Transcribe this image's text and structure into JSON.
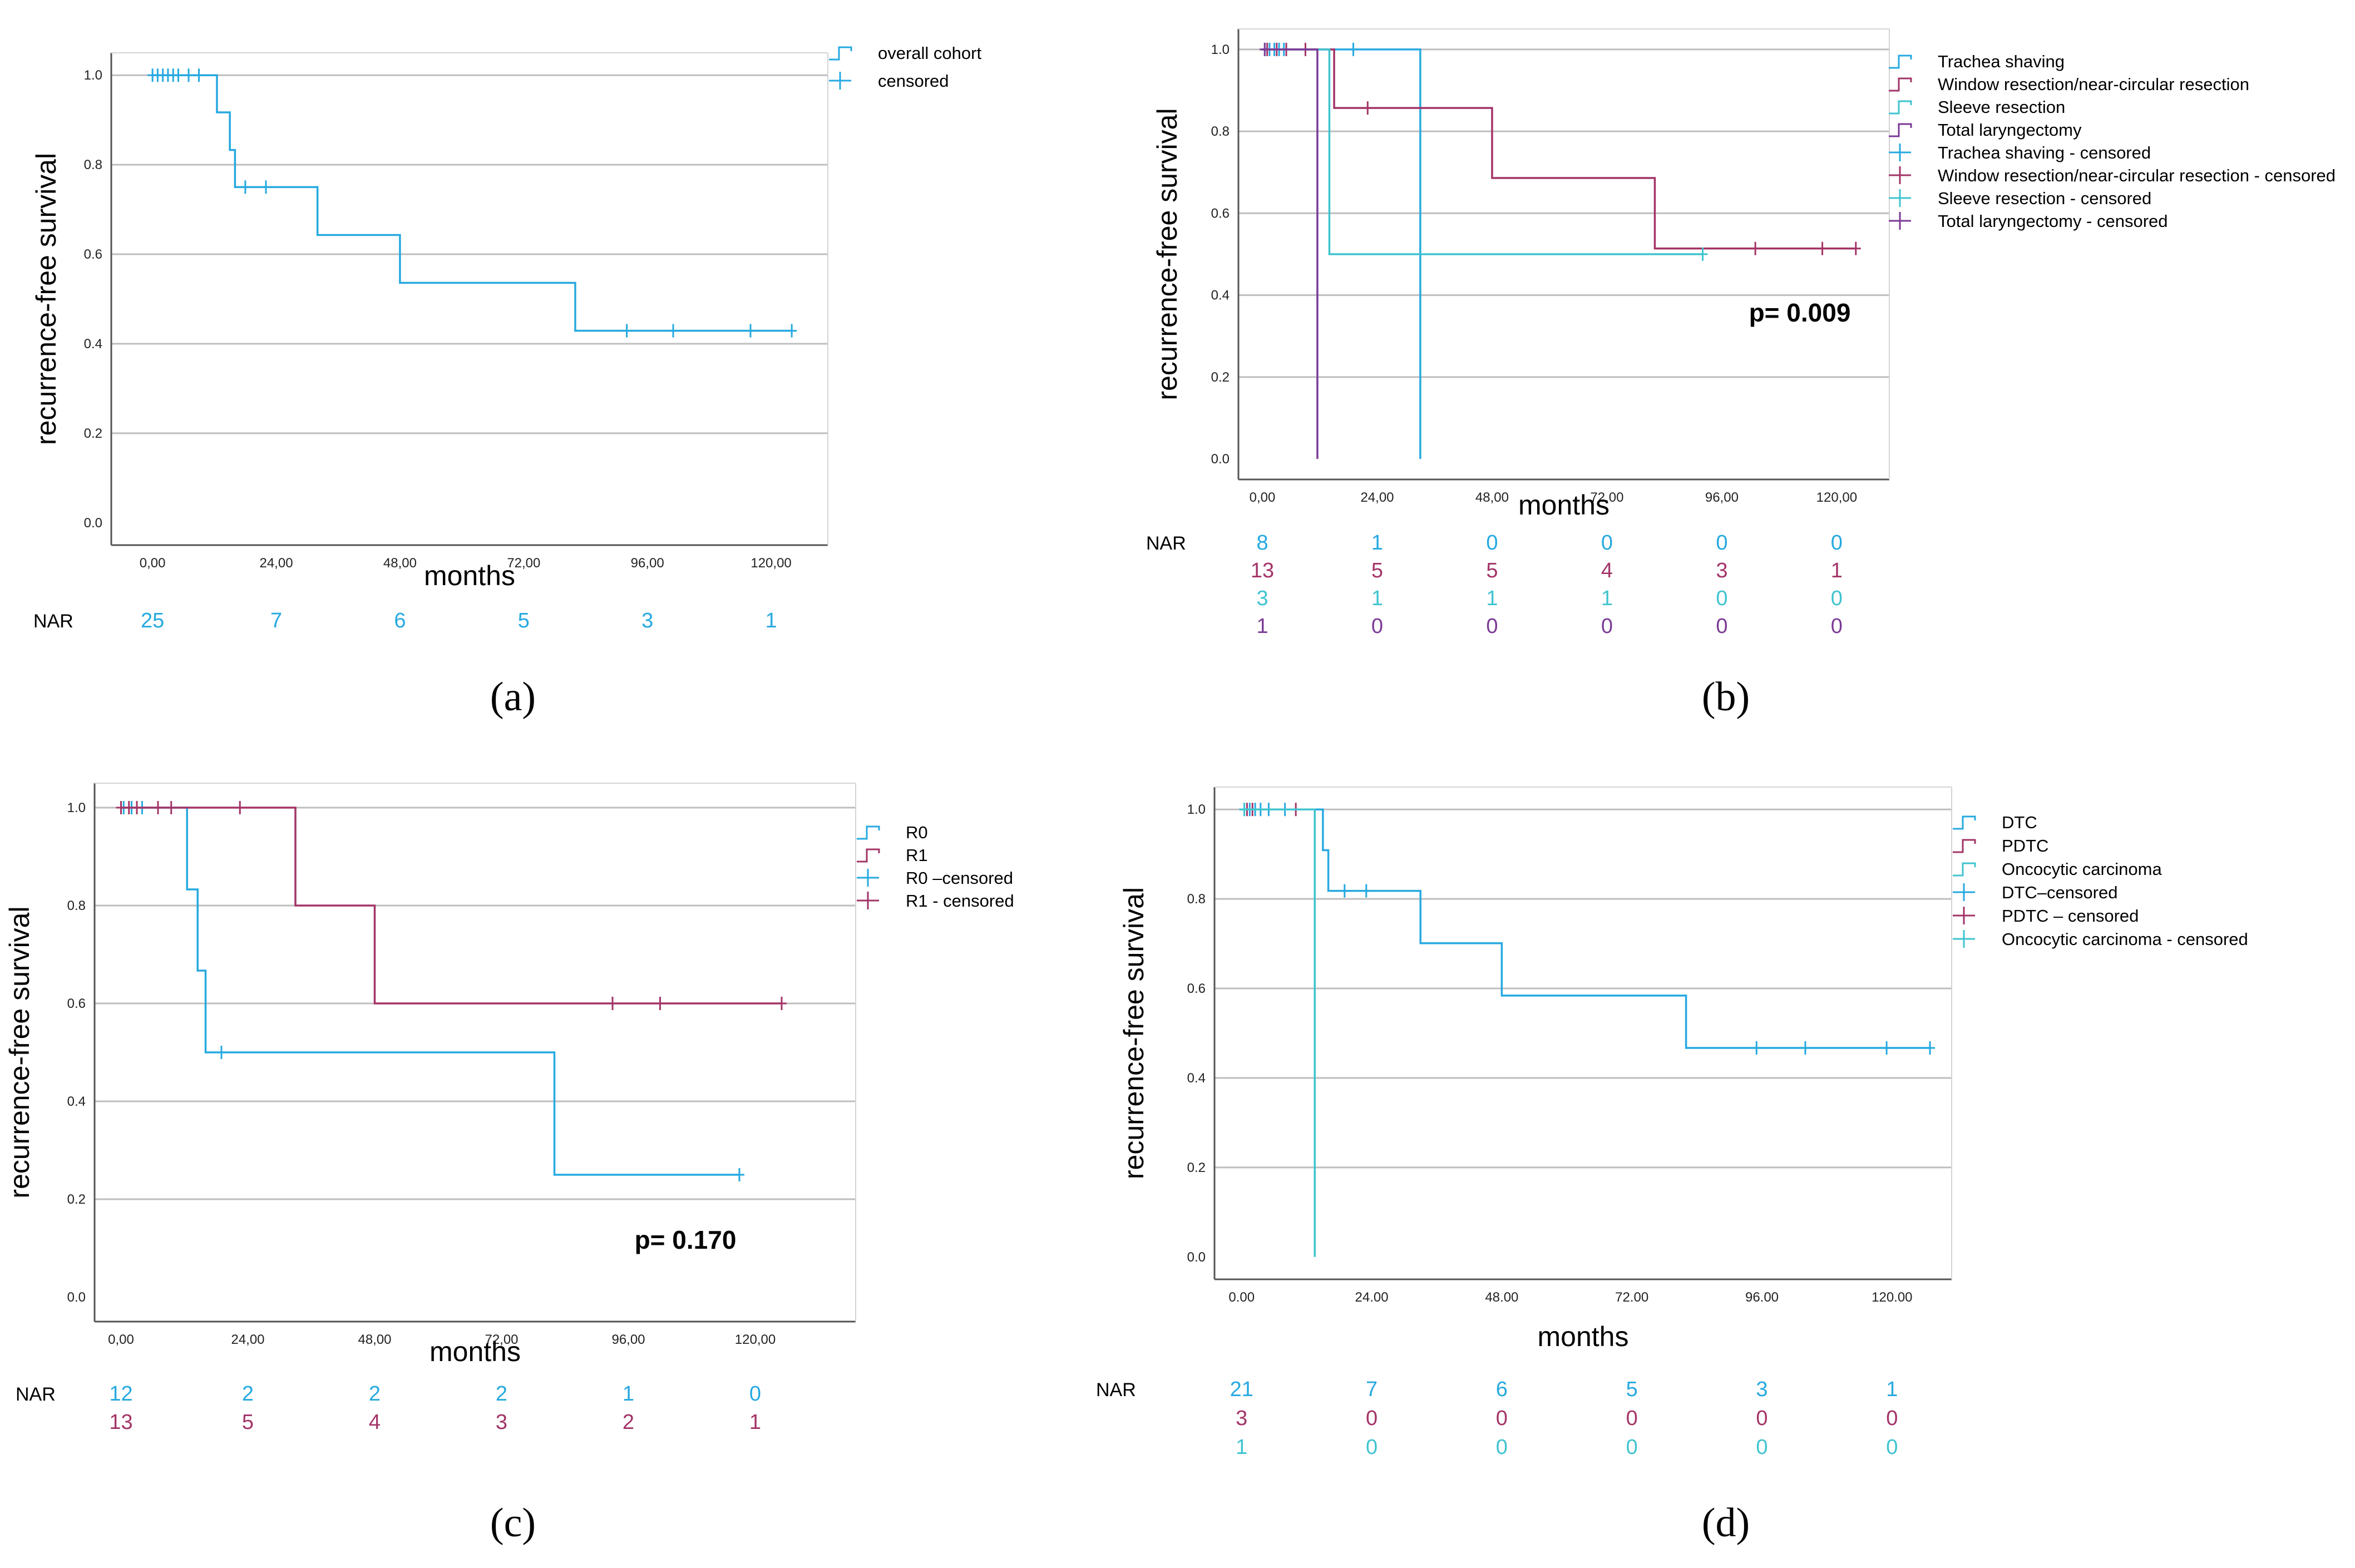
{
  "colors": {
    "cyan": "#26A9E0",
    "magenta": "#A33467",
    "teal": "#3FC4CF",
    "purple": "#7B3A96",
    "grid": "#BEBEBE",
    "frame": "#555555"
  },
  "chart_data": [
    {
      "type": "line",
      "panel_label": "(a)",
      "panel_letter": "a",
      "xlabel": "months",
      "ylabel": "recurrence-free survival",
      "xlim": [
        -8,
        131
      ],
      "ylim": [
        -0.05,
        1.05
      ],
      "x_ticks": [
        0,
        24,
        48,
        72,
        96,
        120
      ],
      "x_tick_labels": [
        "0,00",
        "24,00",
        "48,00",
        "72,00",
        "96,00",
        "120,00"
      ],
      "y_ticks": [
        0,
        0.2,
        0.4,
        0.6,
        0.8,
        1.0
      ],
      "y_tick_labels": [
        "0.0",
        "0.2",
        "0.4",
        "0.6",
        "0.8",
        "1.0"
      ],
      "p_value": "",
      "legend": [
        {
          "label": "overall cohort",
          "kind": "step",
          "color": "cyan"
        },
        {
          "label": "censored",
          "kind": "plus",
          "color": "cyan"
        }
      ],
      "series": [
        {
          "name": "overall cohort",
          "color": "cyan",
          "steps": [
            [
              0,
              1.0
            ],
            [
              12.5,
              0.917
            ],
            [
              15,
              0.833
            ],
            [
              16,
              0.75
            ],
            [
              32,
              0.643
            ],
            [
              48,
              0.536
            ],
            [
              82,
              0.429
            ],
            [
              124,
              0.429
            ]
          ],
          "censored": [
            [
              0,
              1.0
            ],
            [
              1,
              1.0
            ],
            [
              2,
              1.0
            ],
            [
              3,
              1.0
            ],
            [
              4,
              1.0
            ],
            [
              5,
              1.0
            ],
            [
              7,
              1.0
            ],
            [
              9,
              1.0
            ],
            [
              18,
              0.75
            ],
            [
              22,
              0.75
            ],
            [
              92,
              0.429
            ],
            [
              101,
              0.429
            ],
            [
              116,
              0.429
            ],
            [
              124,
              0.429
            ]
          ]
        }
      ],
      "nar_label": "NAR",
      "nar": [
        {
          "color": "cyan",
          "values": [
            "25",
            "7",
            "6",
            "5",
            "3",
            "1"
          ]
        }
      ]
    },
    {
      "type": "line",
      "panel_label": "(b)",
      "panel_letter": "b",
      "xlabel": "months",
      "ylabel": "recurrence-free survival",
      "xlim": [
        -5,
        131
      ],
      "ylim": [
        -0.05,
        1.05
      ],
      "x_ticks": [
        0,
        24,
        48,
        72,
        96,
        120
      ],
      "x_tick_labels": [
        "0,00",
        "24,00",
        "48,00",
        "72,00",
        "96,00",
        "120,00"
      ],
      "y_ticks": [
        0,
        0.2,
        0.4,
        0.6,
        0.8,
        1.0
      ],
      "y_tick_labels": [
        "0.0",
        "0.2",
        "0.4",
        "0.6",
        "0.8",
        "1.0"
      ],
      "p_value": "p= 0.009",
      "legend": [
        {
          "label": "Trachea shaving",
          "kind": "step",
          "color": "cyan"
        },
        {
          "label": "Window resection/near-circular resection",
          "kind": "step",
          "color": "magenta"
        },
        {
          "label": "Sleeve resection",
          "kind": "step",
          "color": "teal"
        },
        {
          "label": "Total laryngectomy",
          "kind": "step",
          "color": "purple"
        },
        {
          "label": "Trachea shaving - censored",
          "kind": "plus",
          "color": "cyan"
        },
        {
          "label": "Window resection/near-circular resection - censored",
          "kind": "plus",
          "color": "magenta"
        },
        {
          "label": "Sleeve resection - censored",
          "kind": "plus",
          "color": "teal"
        },
        {
          "label": "Total laryngectomy - censored",
          "kind": "plus",
          "color": "purple"
        }
      ],
      "series": [
        {
          "name": "Trachea shaving",
          "color": "cyan",
          "steps": [
            [
              0,
              1.0
            ],
            [
              33,
              0.0
            ]
          ],
          "censored": [
            [
              0.5,
              1.0
            ],
            [
              1.5,
              1.0
            ],
            [
              2.5,
              1.0
            ],
            [
              3.5,
              1.0
            ],
            [
              4.5,
              1.0
            ],
            [
              19,
              1.0
            ]
          ]
        },
        {
          "name": "Window resection/near-circular resection",
          "color": "magenta",
          "steps": [
            [
              0,
              1.0
            ],
            [
              15,
              0.857
            ],
            [
              48,
              0.686
            ],
            [
              82,
              0.514
            ],
            [
              124,
              0.514
            ]
          ],
          "censored": [
            [
              1,
              1.0
            ],
            [
              3,
              1.0
            ],
            [
              5,
              1.0
            ],
            [
              9,
              1.0
            ],
            [
              22,
              0.857
            ],
            [
              103,
              0.514
            ],
            [
              117,
              0.514
            ],
            [
              124,
              0.514
            ]
          ]
        },
        {
          "name": "Sleeve resection",
          "color": "teal",
          "steps": [
            [
              0,
              1.0
            ],
            [
              14,
              0.5
            ],
            [
              92,
              0.5
            ]
          ],
          "censored": [
            [
              92,
              0.5
            ]
          ]
        },
        {
          "name": "Total laryngectomy",
          "color": "purple",
          "steps": [
            [
              0,
              1.0
            ],
            [
              11.5,
              0.0
            ]
          ],
          "censored": [
            [
              0.5,
              1.0
            ]
          ]
        }
      ],
      "nar_label": "NAR",
      "nar": [
        {
          "color": "cyan",
          "values": [
            "8",
            "1",
            "0",
            "0",
            "0",
            "0"
          ]
        },
        {
          "color": "magenta",
          "values": [
            "13",
            "5",
            "5",
            "4",
            "3",
            "1"
          ]
        },
        {
          "color": "teal",
          "values": [
            "3",
            "1",
            "1",
            "1",
            "0",
            "0"
          ]
        },
        {
          "color": "purple",
          "values": [
            "1",
            "0",
            "0",
            "0",
            "0",
            "0"
          ]
        }
      ]
    },
    {
      "type": "line",
      "panel_label": "(c)",
      "panel_letter": "c",
      "xlabel": "months",
      "ylabel": "recurrence-free survival",
      "xlim": [
        -5,
        139
      ],
      "ylim": [
        -0.05,
        1.05
      ],
      "x_ticks": [
        0,
        24,
        48,
        72,
        96,
        120
      ],
      "x_tick_labels": [
        "0,00",
        "24,00",
        "48,00",
        "72,00",
        "96,00",
        "120,00"
      ],
      "y_ticks": [
        0,
        0.2,
        0.4,
        0.6,
        0.8,
        1.0
      ],
      "y_tick_labels": [
        "0.0",
        "0.2",
        "0.4",
        "0.6",
        "0.8",
        "1.0"
      ],
      "p_value": "p= 0.170",
      "legend": [
        {
          "label": "R0",
          "kind": "step",
          "color": "cyan"
        },
        {
          "label": "R1",
          "kind": "step",
          "color": "magenta"
        },
        {
          "label": "R0 –censored",
          "kind": "plus",
          "color": "cyan"
        },
        {
          "label": "R1 - censored",
          "kind": "plus",
          "color": "magenta"
        }
      ],
      "series": [
        {
          "name": "R0",
          "color": "cyan",
          "steps": [
            [
              0,
              1.0
            ],
            [
              12.5,
              0.833
            ],
            [
              14.5,
              0.667
            ],
            [
              16,
              0.5
            ],
            [
              82,
              0.25
            ],
            [
              117,
              0.25
            ]
          ],
          "censored": [
            [
              0.5,
              1.0
            ],
            [
              2,
              1.0
            ],
            [
              4,
              1.0
            ],
            [
              19,
              0.5
            ],
            [
              117,
              0.25
            ]
          ]
        },
        {
          "name": "R1",
          "color": "magenta",
          "steps": [
            [
              0,
              1.0
            ],
            [
              33,
              0.8
            ],
            [
              48,
              0.6
            ],
            [
              125,
              0.6
            ]
          ],
          "censored": [
            [
              0,
              1.0
            ],
            [
              1.5,
              1.0
            ],
            [
              3,
              1.0
            ],
            [
              7,
              1.0
            ],
            [
              9.5,
              1.0
            ],
            [
              22.5,
              1.0
            ],
            [
              93,
              0.6
            ],
            [
              102,
              0.6
            ],
            [
              125,
              0.6
            ]
          ]
        }
      ],
      "nar_label": "NAR",
      "nar": [
        {
          "color": "cyan",
          "values": [
            "12",
            "2",
            "2",
            "2",
            "1",
            "0"
          ]
        },
        {
          "color": "magenta",
          "values": [
            "13",
            "5",
            "4",
            "3",
            "2",
            "1"
          ]
        }
      ]
    },
    {
      "type": "line",
      "panel_label": "(d)",
      "panel_letter": "d",
      "xlabel": "months",
      "ylabel": "recurrence-free survival",
      "xlim": [
        -5,
        131
      ],
      "ylim": [
        -0.05,
        1.05
      ],
      "x_ticks": [
        0,
        24,
        48,
        72,
        96,
        120
      ],
      "x_tick_labels": [
        "0.00",
        "24.00",
        "48.00",
        "72.00",
        "96.00",
        "120.00"
      ],
      "y_ticks": [
        0,
        0.2,
        0.4,
        0.6,
        0.8,
        1.0
      ],
      "y_tick_labels": [
        "0.0",
        "0.2",
        "0.4",
        "0.6",
        "0.8",
        "1.0"
      ],
      "p_value": "",
      "legend": [
        {
          "label": "DTC",
          "kind": "step",
          "color": "cyan"
        },
        {
          "label": "PDTC",
          "kind": "step",
          "color": "magenta"
        },
        {
          "label": "Oncocytic carcinoma",
          "kind": "step",
          "color": "teal"
        },
        {
          "label": "DTC–censored",
          "kind": "plus",
          "color": "cyan"
        },
        {
          "label": "PDTC – censored",
          "kind": "plus",
          "color": "magenta"
        },
        {
          "label": "Oncocytic carcinoma - censored",
          "kind": "plus",
          "color": "teal"
        }
      ],
      "series": [
        {
          "name": "DTC",
          "color": "cyan",
          "steps": [
            [
              0,
              1.0
            ],
            [
              15,
              0.909
            ],
            [
              16,
              0.818
            ],
            [
              33,
              0.701
            ],
            [
              48,
              0.584
            ],
            [
              82,
              0.467
            ],
            [
              127,
              0.467
            ]
          ],
          "censored": [
            [
              0.5,
              1.0
            ],
            [
              1.5,
              1.0
            ],
            [
              2.5,
              1.0
            ],
            [
              3.5,
              1.0
            ],
            [
              5,
              1.0
            ],
            [
              8,
              1.0
            ],
            [
              19,
              0.818
            ],
            [
              23,
              0.818
            ],
            [
              95,
              0.467
            ],
            [
              104,
              0.467
            ],
            [
              119,
              0.467
            ],
            [
              127,
              0.467
            ]
          ]
        },
        {
          "name": "PDTC",
          "color": "magenta",
          "steps": [
            [
              0,
              1.0
            ],
            [
              10,
              1.0
            ]
          ],
          "censored": [
            [
              1,
              1.0
            ],
            [
              2,
              1.0
            ],
            [
              10,
              1.0
            ]
          ]
        },
        {
          "name": "Oncocytic carcinoma",
          "color": "teal",
          "steps": [
            [
              0,
              1.0
            ],
            [
              13.5,
              0.0
            ]
          ],
          "censored": [
            [
              0.5,
              1.0
            ]
          ]
        }
      ],
      "nar_label": "NAR",
      "nar": [
        {
          "color": "cyan",
          "values": [
            "21",
            "7",
            "6",
            "5",
            "3",
            "1"
          ]
        },
        {
          "color": "magenta",
          "values": [
            "3",
            "0",
            "0",
            "0",
            "0",
            "0"
          ]
        },
        {
          "color": "teal",
          "values": [
            "1",
            "0",
            "0",
            "0",
            "0",
            "0"
          ]
        }
      ]
    }
  ]
}
